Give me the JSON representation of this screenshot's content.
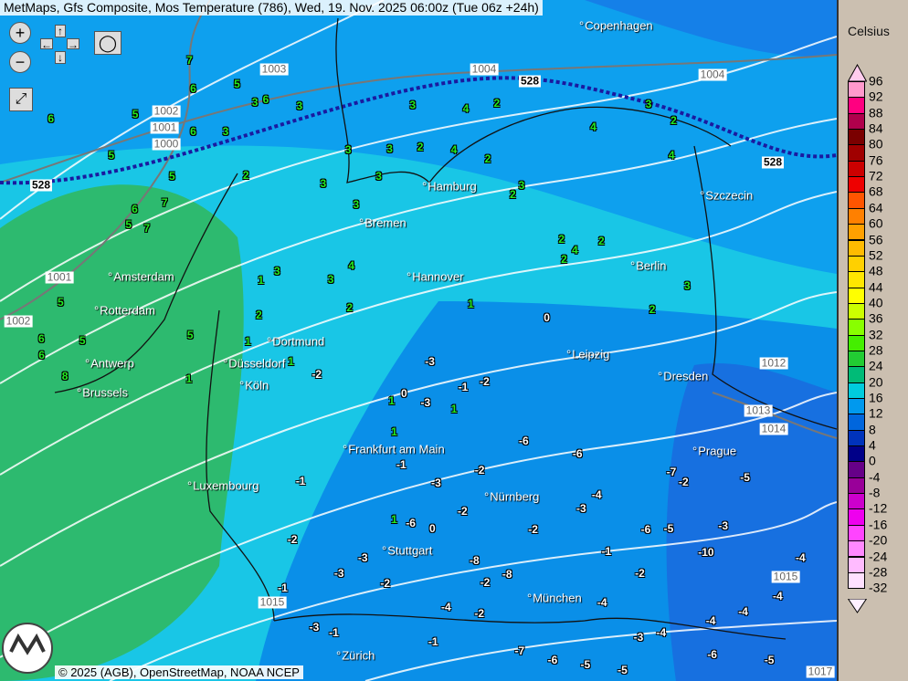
{
  "title": "MetMaps, Gfs Composite, Mos Temperature (786), Wed, 19. Nov. 2025 06:00z (Tue 06z +24h)",
  "controls": {
    "zoom_in": "zoom-in",
    "zoom_out": "zoom-out",
    "pan": "pan-arrows",
    "snapshot": "camera",
    "fullscreen": "fullscreen"
  },
  "copyright": "© 2025 (AGB), OpenStreetMap, NOAA NCEP",
  "logo_text": "METMAPS",
  "cities": [
    "Copenhagen",
    "Hamburg",
    "Szczecin",
    "Bremen",
    "Berlin",
    "Hannover",
    "Amsterdam",
    "Rotterdam",
    "Dortmund",
    "Düsseldorf",
    "Köln",
    "Antwerp",
    "Brussels",
    "Leipzig",
    "Dresden",
    "Frankfurt am Main",
    "Prague",
    "Luxembourg",
    "Nürnberg",
    "Stuttgart",
    "München",
    "Zürich"
  ],
  "isobars": [
    "1003",
    "1004",
    "1004",
    "528",
    "1002",
    "1001",
    "1000",
    "528",
    "528",
    "1001",
    "1002",
    "1012",
    "1013",
    "1014",
    "1015",
    "1015",
    "1017"
  ],
  "temperatures": [
    7,
    6,
    6,
    6,
    5,
    7,
    6,
    7,
    6,
    5,
    6,
    8,
    5,
    5,
    5,
    6,
    5,
    4,
    3,
    2,
    1,
    -2,
    -1,
    2,
    -2,
    1,
    3,
    4,
    4,
    2,
    3,
    2,
    3,
    3,
    2,
    2,
    1,
    2,
    2,
    1,
    1,
    3,
    4,
    3,
    4,
    5,
    3,
    3,
    3,
    5,
    4,
    3,
    2,
    1,
    0,
    1,
    1,
    -1,
    0,
    -1,
    -2,
    -1,
    -1,
    -1,
    -3,
    -2,
    -2,
    -2,
    0,
    -1,
    -3,
    -4,
    -5,
    -2,
    -4,
    -3,
    -5,
    -4,
    -6,
    -3,
    -5,
    -4,
    -6,
    -7,
    -8,
    -6,
    -4,
    -3,
    -2,
    -7,
    -6,
    -5,
    -3,
    -4,
    -2,
    -3,
    1,
    2,
    2,
    3,
    3,
    2,
    3,
    -10,
    -5,
    -6,
    -4,
    -3,
    -2,
    -8,
    -3,
    -2,
    -4,
    -6
  ],
  "legend": {
    "unit": "Celsius",
    "labels": [
      "96",
      "92",
      "88",
      "84",
      "80",
      "76",
      "72",
      "68",
      "64",
      "60",
      "56",
      "52",
      "48",
      "44",
      "40",
      "36",
      "32",
      "28",
      "24",
      "20",
      "16",
      "12",
      "8",
      "4",
      "0",
      "-4",
      "-8",
      "-12",
      "-16",
      "-20",
      "-24",
      "-28",
      "-32"
    ],
    "colors": [
      "#ff99cc",
      "#ff0080",
      "#b0004c",
      "#7a0000",
      "#a00000",
      "#cc0000",
      "#ee0000",
      "#ff5500",
      "#ff8000",
      "#ffa000",
      "#ffbb00",
      "#ffd000",
      "#ffe600",
      "#ffff00",
      "#ccff00",
      "#88ff00",
      "#44ee00",
      "#22cc33",
      "#00bb77",
      "#00ccdd",
      "#0099ee",
      "#0066dd",
      "#0033bb",
      "#000088",
      "#660088",
      "#990099",
      "#cc00cc",
      "#ee00ee",
      "#ff44ff",
      "#ff88ff",
      "#ffbbff",
      "#ffe0ff"
    ]
  },
  "colors": {
    "warm_green": "#2dba6f",
    "cool_cyan": "#19c6e6",
    "sea_blue": "#0ea0ee",
    "cold_blue": "#1770e0"
  }
}
